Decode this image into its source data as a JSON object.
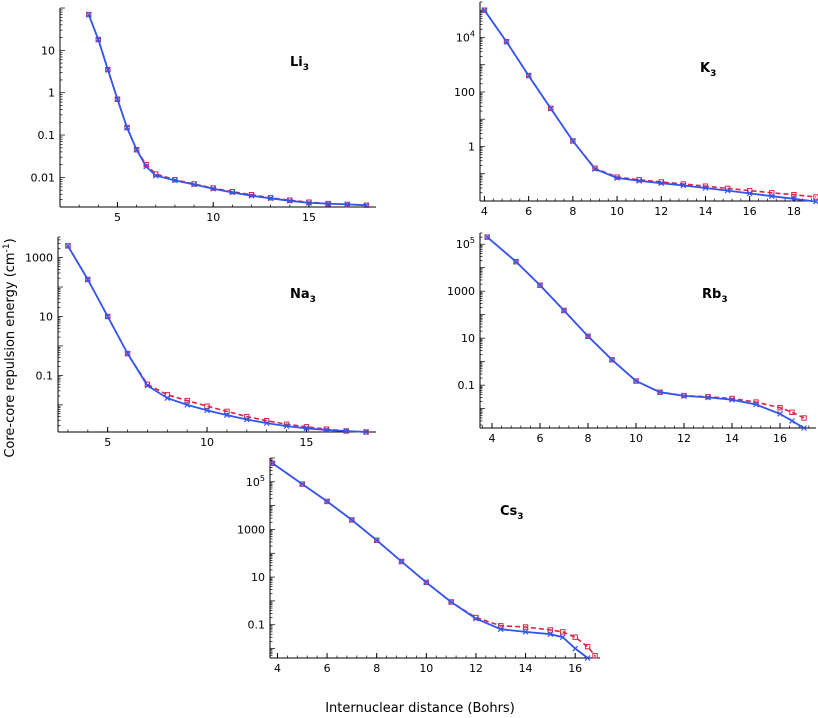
{
  "figure": {
    "xlabel": "Internuclear distance (Bohrs)",
    "ylabel": "Core-core repulsion energy (cm",
    "ylabel_sup": "-1",
    "ylabel_close": ")"
  },
  "legend_colors": {
    "blue_series": "#3355ee",
    "red_series": "#dd2244"
  },
  "chart_data": [
    {
      "type": "line",
      "yscale": "log",
      "label": "Li",
      "label_sub": "3",
      "xlim": [
        2,
        18.5
      ],
      "ylim": [
        0.002,
        100
      ],
      "xticks": [
        5,
        10,
        15
      ],
      "yticks": [
        {
          "v": 10,
          "t": "10"
        },
        {
          "v": 1,
          "t": "1"
        },
        {
          "v": 0.1,
          "t": "0.1"
        },
        {
          "v": 0.01,
          "t": "0.01"
        }
      ],
      "series": [
        {
          "name": "blue",
          "x": [
            3.5,
            4.0,
            4.5,
            5.0,
            5.5,
            6.0,
            6.5,
            7.0,
            8.0,
            9.0,
            10.0,
            11.0,
            12.0,
            13.0,
            14.0,
            15.0,
            16.0,
            17.0,
            18.0
          ],
          "y": [
            70,
            18,
            3.5,
            0.7,
            0.15,
            0.045,
            0.018,
            0.011,
            0.0085,
            0.0068,
            0.0054,
            0.0044,
            0.0037,
            0.0032,
            0.0028,
            0.0025,
            0.0024,
            0.0023,
            0.0022
          ]
        },
        {
          "name": "red",
          "x": [
            3.5,
            4.0,
            4.5,
            5.0,
            5.5,
            6.0,
            6.5,
            7.0,
            8.0,
            9.0,
            10.0,
            11.0,
            12.0,
            13.0,
            14.0,
            15.0,
            16.0,
            17.0,
            18.0
          ],
          "y": [
            70,
            18,
            3.5,
            0.7,
            0.15,
            0.045,
            0.02,
            0.012,
            0.0088,
            0.007,
            0.0056,
            0.0046,
            0.0039,
            0.0033,
            0.0029,
            0.0026,
            0.0024,
            0.0023,
            0.0022
          ]
        }
      ]
    },
    {
      "type": "line",
      "yscale": "log",
      "label": "K",
      "label_sub": "3",
      "xlim": [
        3.8,
        19
      ],
      "ylim": [
        0.01,
        200000
      ],
      "xticks": [
        4,
        6,
        8,
        10,
        12,
        14,
        16,
        18
      ],
      "yticks": [
        {
          "v": 10000,
          "t": "10",
          "sup": "4"
        },
        {
          "v": 100,
          "t": "100"
        },
        {
          "v": 1,
          "t": "1"
        }
      ],
      "series": [
        {
          "name": "blue",
          "x": [
            4,
            5,
            6,
            7,
            8,
            9,
            10,
            11,
            12,
            13,
            14,
            15,
            16,
            17,
            18,
            19
          ],
          "y": [
            100000,
            7000,
            400,
            25,
            1.6,
            0.15,
            0.07,
            0.055,
            0.045,
            0.037,
            0.03,
            0.024,
            0.019,
            0.015,
            0.012,
            0.0095
          ]
        },
        {
          "name": "red",
          "x": [
            4,
            5,
            6,
            7,
            8,
            9,
            10,
            11,
            12,
            13,
            14,
            15,
            16,
            17,
            18,
            19
          ],
          "y": [
            100000,
            7000,
            400,
            25,
            1.6,
            0.16,
            0.075,
            0.06,
            0.05,
            0.042,
            0.035,
            0.029,
            0.024,
            0.02,
            0.017,
            0.014
          ]
        }
      ]
    },
    {
      "type": "line",
      "yscale": "log",
      "label": "Na",
      "label_sub": "3",
      "xlim": [
        2.5,
        18.5
      ],
      "ylim": [
        0.0012,
        5000
      ],
      "xticks": [
        5,
        10,
        15
      ],
      "yticks": [
        {
          "v": 1000,
          "t": "1000"
        },
        {
          "v": 10,
          "t": "10"
        },
        {
          "v": 0.1,
          "t": "0.1"
        }
      ],
      "series": [
        {
          "name": "blue",
          "x": [
            3,
            4,
            5,
            6,
            7,
            8,
            9,
            10,
            11,
            12,
            13,
            14,
            15,
            16,
            17,
            18
          ],
          "y": [
            2500,
            180,
            10,
            0.55,
            0.045,
            0.017,
            0.01,
            0.0065,
            0.0045,
            0.0032,
            0.0024,
            0.0019,
            0.0016,
            0.0014,
            0.0013,
            0.0012
          ]
        },
        {
          "name": "red",
          "x": [
            3,
            4,
            5,
            6,
            7,
            8,
            9,
            10,
            11,
            12,
            13,
            14,
            15,
            16,
            17,
            18
          ],
          "y": [
            2500,
            180,
            10,
            0.55,
            0.05,
            0.022,
            0.014,
            0.009,
            0.006,
            0.004,
            0.0029,
            0.0022,
            0.0018,
            0.0015,
            0.0013,
            0.0012
          ]
        }
      ]
    },
    {
      "type": "line",
      "yscale": "log",
      "label": "Rb",
      "label_sub": "3",
      "xlim": [
        3.5,
        17.5
      ],
      "ylim": [
        0.0015,
        300000
      ],
      "xticks": [
        4,
        6,
        8,
        10,
        12,
        14,
        16
      ],
      "yticks": [
        {
          "v": 100000,
          "t": "10",
          "sup": "5"
        },
        {
          "v": 1000,
          "t": "1000"
        },
        {
          "v": 10,
          "t": "10"
        },
        {
          "v": 0.1,
          "t": "0.1"
        }
      ],
      "series": [
        {
          "name": "blue",
          "x": [
            3.8,
            5,
            6,
            7,
            8,
            9,
            10,
            11,
            12,
            13,
            14,
            15,
            16,
            16.5,
            17
          ],
          "y": [
            200000,
            18000,
            1800,
            150,
            12,
            1.2,
            0.15,
            0.05,
            0.035,
            0.03,
            0.024,
            0.015,
            0.006,
            0.003,
            0.0015
          ]
        },
        {
          "name": "red",
          "x": [
            3.8,
            5,
            6,
            7,
            8,
            9,
            10,
            11,
            12,
            13,
            14,
            15,
            16,
            16.5,
            17
          ],
          "y": [
            200000,
            18000,
            1800,
            150,
            12,
            1.2,
            0.15,
            0.05,
            0.036,
            0.032,
            0.027,
            0.019,
            0.011,
            0.007,
            0.004
          ]
        }
      ]
    },
    {
      "type": "line",
      "yscale": "log",
      "label": "Cs",
      "label_sub": "3",
      "xlim": [
        3.7,
        17
      ],
      "ylim": [
        0.004,
        1000000
      ],
      "xticks": [
        4,
        6,
        8,
        10,
        12,
        14,
        16
      ],
      "yticks": [
        {
          "v": 100000,
          "t": "10",
          "sup": "5"
        },
        {
          "v": 1000,
          "t": "1000"
        },
        {
          "v": 10,
          "t": "10"
        },
        {
          "v": 0.1,
          "t": "0.1"
        }
      ],
      "series": [
        {
          "name": "blue",
          "x": [
            3.8,
            5,
            6,
            7,
            8,
            9,
            10,
            11,
            12,
            13,
            14,
            15,
            15.5,
            16,
            16.5
          ],
          "y": [
            600000,
            80000,
            15000,
            2500,
            350,
            45,
            6,
            0.9,
            0.18,
            0.065,
            0.05,
            0.04,
            0.03,
            0.01,
            0.004
          ]
        },
        {
          "name": "red",
          "x": [
            3.8,
            5,
            6,
            7,
            8,
            9,
            10,
            11,
            12,
            13,
            14,
            15,
            15.5,
            16,
            16.5,
            16.8
          ],
          "y": [
            600000,
            80000,
            15000,
            2500,
            350,
            45,
            6,
            0.9,
            0.2,
            0.09,
            0.08,
            0.06,
            0.05,
            0.03,
            0.012,
            0.005
          ]
        }
      ]
    }
  ]
}
